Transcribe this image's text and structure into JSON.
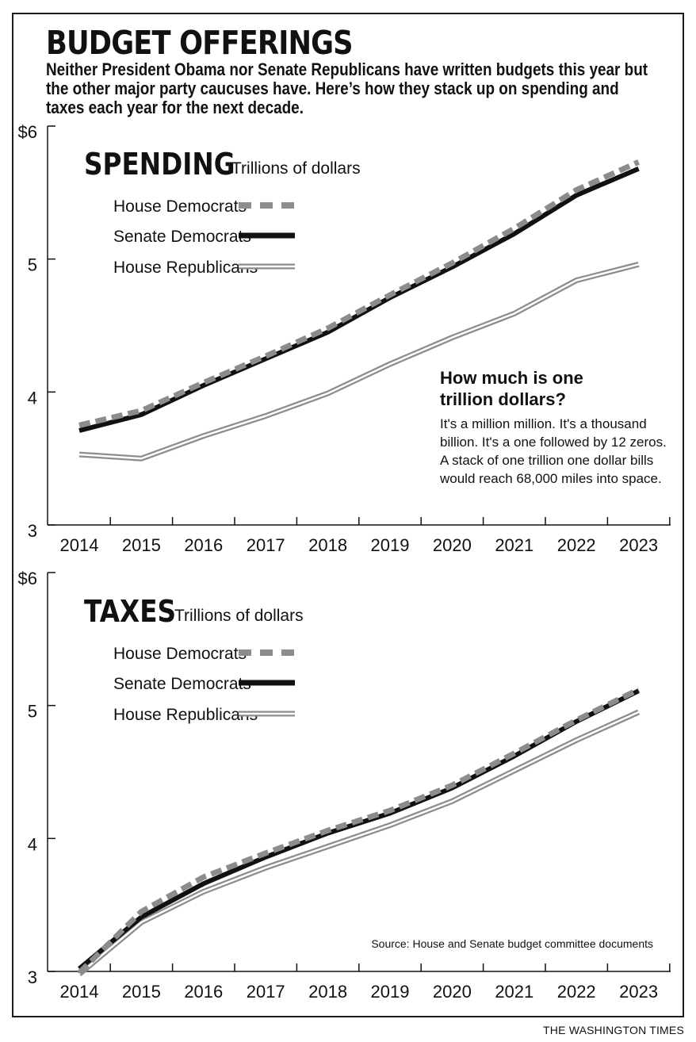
{
  "title": "BUDGET OFFERINGS",
  "subtitle": "Neither President Obama nor Senate Republicans have written budgets this year but the other major party caucuses have. Here’s how they stack up on spending and taxes each year for the next decade.",
  "credit": "THE WASHINGTON TIMES",
  "colors": {
    "house_democrats": "#8c8c8c",
    "senate_democrats": "#111111",
    "house_republicans": "#8c8c8c",
    "axis": "#111111"
  },
  "chart_data": [
    {
      "type": "line",
      "title": "SPENDING",
      "subtitle": "Trillions of dollars",
      "x": [
        "2014",
        "2015",
        "2016",
        "2017",
        "2018",
        "2019",
        "2020",
        "2021",
        "2022",
        "2023"
      ],
      "ylim": [
        3,
        6
      ],
      "yticks": [
        3,
        4,
        5,
        6
      ],
      "ytick_labels": [
        "3",
        "4",
        "5",
        "$6"
      ],
      "grid": false,
      "legend_position": "top-left",
      "series": [
        {
          "name": "House Democrats",
          "style": "dashed",
          "values": [
            3.75,
            3.86,
            4.07,
            4.27,
            4.48,
            4.73,
            4.97,
            5.23,
            5.52,
            5.73
          ]
        },
        {
          "name": "Senate Democrats",
          "style": "solid-thick",
          "values": [
            3.71,
            3.83,
            4.05,
            4.25,
            4.45,
            4.71,
            4.94,
            5.19,
            5.48,
            5.68
          ]
        },
        {
          "name": "House Republicans",
          "style": "double",
          "values": [
            3.53,
            3.5,
            3.67,
            3.82,
            3.99,
            4.21,
            4.41,
            4.59,
            4.84,
            4.96
          ]
        }
      ],
      "annotation": {
        "heading": [
          "How much is one",
          "trillion dollars?"
        ],
        "body": [
          "It's a million million. It's a thousand",
          "billion. It's a one followed by 12 zeros.",
          "A stack of one trillion one dollar bills",
          "would reach 68,000 miles into space."
        ]
      }
    },
    {
      "type": "line",
      "title": "TAXES",
      "subtitle": "Trillions of dollars",
      "x": [
        "2014",
        "2015",
        "2016",
        "2017",
        "2018",
        "2019",
        "2020",
        "2021",
        "2022",
        "2023"
      ],
      "ylim": [
        3,
        6
      ],
      "yticks": [
        3,
        4,
        5,
        6
      ],
      "ytick_labels": [
        "3",
        "4",
        "5",
        "$6"
      ],
      "grid": false,
      "legend_position": "top-left",
      "series": [
        {
          "name": "House Democrats",
          "style": "dashed",
          "values": [
            2.99,
            3.45,
            3.71,
            3.89,
            4.06,
            4.21,
            4.4,
            4.64,
            4.89,
            5.12
          ]
        },
        {
          "name": "Senate Democrats",
          "style": "solid-thick",
          "values": [
            3.02,
            3.41,
            3.66,
            3.86,
            4.04,
            4.19,
            4.38,
            4.62,
            4.88,
            5.11
          ]
        },
        {
          "name": "House Republicans",
          "style": "double",
          "values": [
            2.98,
            3.37,
            3.6,
            3.78,
            3.94,
            4.1,
            4.28,
            4.51,
            4.74,
            4.95
          ]
        }
      ],
      "source": "Source: House and Senate budget committee documents"
    }
  ]
}
